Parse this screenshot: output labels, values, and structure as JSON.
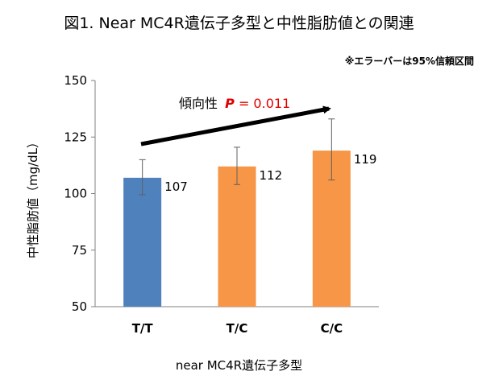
{
  "title": "図1.  Near MC4R遺伝子多型と中性脂肪値との関連",
  "note": "※エラーバーは95%信頼区間",
  "trend": {
    "label": "傾向性",
    "p_symbol": "P",
    "p_value": "= 0.011"
  },
  "colors": {
    "tt": "#4f81bd",
    "other": "#f79646",
    "axis": "#808080",
    "trend_arrow": "#000000"
  },
  "chart_data": {
    "type": "bar",
    "title": "図1.  Near MC4R遺伝子多型と中性脂肪値との関連",
    "xlabel": "near MC4R遺伝子多型",
    "ylabel": "中性脂肪値（mg/dL）",
    "ylim": [
      50,
      150
    ],
    "yticks": [
      50,
      75,
      100,
      125,
      150
    ],
    "categories": [
      "T/T",
      "T/C",
      "C/C"
    ],
    "values": [
      107,
      112,
      119
    ],
    "data_labels": [
      "107",
      "112",
      "119"
    ],
    "error_low": [
      99.5,
      104,
      106
    ],
    "error_high": [
      115,
      120.5,
      133
    ],
    "grid": false,
    "legend": "none"
  }
}
